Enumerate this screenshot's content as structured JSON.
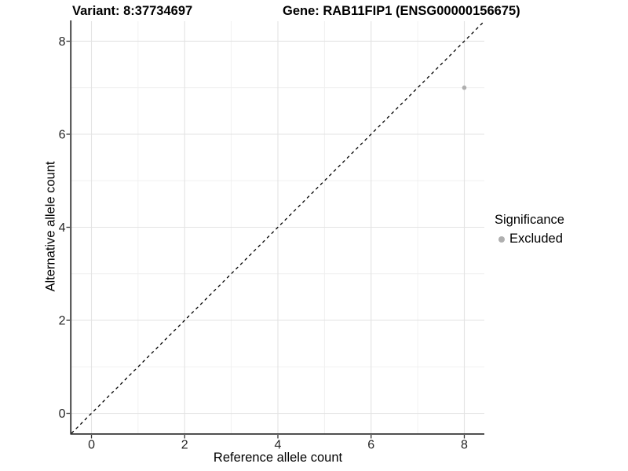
{
  "figure": {
    "titles": {
      "variant": "Variant: 8:37734697",
      "gene": "Gene: RAB11FIP1 (ENSG00000156675)"
    },
    "x_axis": {
      "label": "Reference allele count"
    },
    "y_axis": {
      "label": "Alternative allele count"
    },
    "legend": {
      "title": "Significance",
      "items": [
        {
          "label": "Excluded",
          "color": "#afafaf"
        }
      ]
    },
    "colors": {
      "point": "#afafaf",
      "grid_major": "#e3e3e3",
      "grid_minor": "#efefef",
      "axis_line": "#333333",
      "tick_text": "#262626",
      "reference_line": "#000000"
    }
  },
  "chart_data": {
    "type": "scatter",
    "title": "Variant: 8:37734697 | Gene: RAB11FIP1 (ENSG00000156675)",
    "xlabel": "Reference allele count",
    "ylabel": "Alternative allele count",
    "xlim": [
      -0.43,
      8.43
    ],
    "ylim": [
      -0.43,
      8.43
    ],
    "x_ticks": [
      0,
      2,
      4,
      6,
      8
    ],
    "y_ticks": [
      0,
      2,
      4,
      6,
      8
    ],
    "x_minor_ticks": [
      1,
      3,
      5,
      7
    ],
    "y_minor_ticks": [
      1,
      3,
      5,
      7
    ],
    "grid": true,
    "legend_position": "right",
    "legend_title": "Significance",
    "legend_entries": [
      "Excluded"
    ],
    "reference_line": {
      "type": "identity",
      "equation": "y = x",
      "style": "dashed",
      "color": "#000000"
    },
    "series": [
      {
        "name": "Excluded",
        "color": "#afafaf",
        "points": [
          {
            "x": 8,
            "y": 7
          }
        ]
      }
    ]
  }
}
